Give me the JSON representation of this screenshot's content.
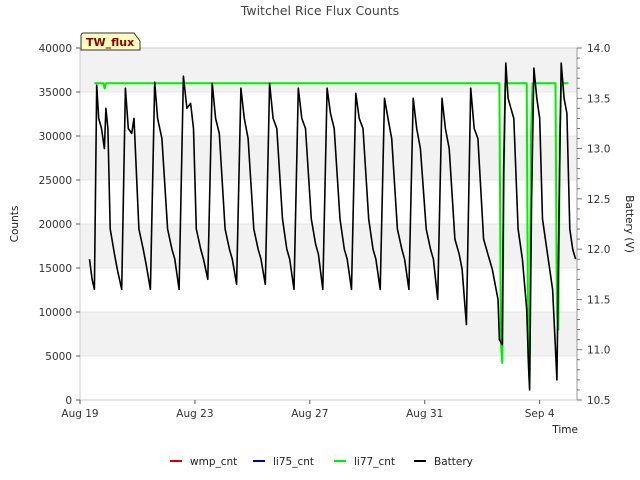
{
  "chart_data": {
    "type": "line",
    "title": "Twitchel Rice Flux Counts",
    "station_label": "TW_flux",
    "xlabel": "Time",
    "ylabel": "Counts",
    "y2label": "Battery (V)",
    "xlim": [
      0,
      17.3
    ],
    "ylim": [
      0,
      40000
    ],
    "y2lim": [
      10.5,
      14.0
    ],
    "x_ticks": [
      {
        "x": 0,
        "label": "Aug 19"
      },
      {
        "x": 4,
        "label": "Aug 23"
      },
      {
        "x": 8,
        "label": "Aug 27"
      },
      {
        "x": 12,
        "label": "Aug 31"
      },
      {
        "x": 16,
        "label": "Sep 4"
      }
    ],
    "y_ticks": [
      0,
      5000,
      10000,
      15000,
      20000,
      25000,
      30000,
      35000,
      40000
    ],
    "y2_ticks": [
      10.5,
      11.0,
      11.5,
      12.0,
      12.5,
      13.0,
      13.5,
      14.0
    ],
    "grid_bands": true,
    "legend_position": "bottom-center",
    "series": [
      {
        "name": "wmp_cnt",
        "color": "#cc0000",
        "points": []
      },
      {
        "name": "li75_cnt",
        "color": "#0000aa",
        "points": []
      },
      {
        "name": "li77_cnt",
        "color": "#00ee00",
        "axis": "left",
        "points": [
          [
            0.5,
            36000
          ],
          [
            0.82,
            36000
          ],
          [
            0.86,
            35400
          ],
          [
            0.9,
            36000
          ],
          [
            14.6,
            36000
          ],
          [
            14.65,
            6500
          ],
          [
            14.7,
            4200
          ],
          [
            14.75,
            25000
          ],
          [
            14.8,
            36000
          ],
          [
            15.55,
            36000
          ],
          [
            15.6,
            5000
          ],
          [
            15.65,
            2000
          ],
          [
            15.7,
            30000
          ],
          [
            15.75,
            36000
          ],
          [
            16.55,
            36000
          ],
          [
            16.6,
            10000
          ],
          [
            16.65,
            8000
          ],
          [
            16.7,
            30000
          ],
          [
            16.75,
            36000
          ],
          [
            17.0,
            36000
          ]
        ]
      },
      {
        "name": "Battery",
        "color": "#000000",
        "axis": "right",
        "points": [
          [
            0.33,
            11.9
          ],
          [
            0.42,
            11.7
          ],
          [
            0.5,
            11.6
          ],
          [
            0.58,
            13.63
          ],
          [
            0.65,
            13.3
          ],
          [
            0.75,
            13.2
          ],
          [
            0.85,
            13.0
          ],
          [
            0.9,
            13.4
          ],
          [
            0.97,
            13.2
          ],
          [
            1.05,
            12.2
          ],
          [
            1.2,
            11.95
          ],
          [
            1.3,
            11.8
          ],
          [
            1.45,
            11.6
          ],
          [
            1.58,
            13.6
          ],
          [
            1.68,
            13.2
          ],
          [
            1.8,
            13.15
          ],
          [
            1.88,
            13.3
          ],
          [
            2.05,
            12.2
          ],
          [
            2.2,
            12.0
          ],
          [
            2.3,
            11.85
          ],
          [
            2.45,
            11.6
          ],
          [
            2.6,
            13.66
          ],
          [
            2.7,
            13.3
          ],
          [
            2.85,
            13.1
          ],
          [
            3.05,
            12.2
          ],
          [
            3.2,
            12.0
          ],
          [
            3.3,
            11.9
          ],
          [
            3.45,
            11.6
          ],
          [
            3.6,
            13.72
          ],
          [
            3.72,
            13.4
          ],
          [
            3.85,
            13.45
          ],
          [
            3.95,
            13.2
          ],
          [
            4.05,
            12.2
          ],
          [
            4.2,
            12.0
          ],
          [
            4.3,
            11.9
          ],
          [
            4.45,
            11.7
          ],
          [
            4.6,
            13.65
          ],
          [
            4.72,
            13.3
          ],
          [
            4.85,
            13.15
          ],
          [
            5.05,
            12.2
          ],
          [
            5.2,
            12.0
          ],
          [
            5.3,
            11.9
          ],
          [
            5.45,
            11.65
          ],
          [
            5.6,
            13.6
          ],
          [
            5.72,
            13.3
          ],
          [
            5.85,
            13.1
          ],
          [
            6.05,
            12.2
          ],
          [
            6.2,
            12.0
          ],
          [
            6.3,
            11.9
          ],
          [
            6.45,
            11.65
          ],
          [
            6.6,
            13.65
          ],
          [
            6.72,
            13.3
          ],
          [
            6.85,
            13.2
          ],
          [
            7.05,
            12.3
          ],
          [
            7.2,
            12.0
          ],
          [
            7.3,
            11.9
          ],
          [
            7.45,
            11.6
          ],
          [
            7.6,
            13.6
          ],
          [
            7.72,
            13.3
          ],
          [
            7.85,
            13.2
          ],
          [
            8.05,
            12.3
          ],
          [
            8.2,
            12.05
          ],
          [
            8.3,
            11.95
          ],
          [
            8.45,
            11.6
          ],
          [
            8.6,
            13.6
          ],
          [
            8.72,
            13.35
          ],
          [
            8.85,
            13.2
          ],
          [
            9.05,
            12.3
          ],
          [
            9.2,
            12.0
          ],
          [
            9.3,
            11.9
          ],
          [
            9.45,
            11.6
          ],
          [
            9.6,
            13.55
          ],
          [
            9.72,
            13.3
          ],
          [
            9.85,
            13.2
          ],
          [
            10.05,
            12.3
          ],
          [
            10.2,
            12.0
          ],
          [
            10.3,
            11.9
          ],
          [
            10.45,
            11.6
          ],
          [
            10.6,
            13.5
          ],
          [
            10.72,
            13.3
          ],
          [
            10.85,
            13.1
          ],
          [
            11.05,
            12.2
          ],
          [
            11.2,
            12.0
          ],
          [
            11.3,
            11.9
          ],
          [
            11.45,
            11.6
          ],
          [
            11.6,
            13.5
          ],
          [
            11.72,
            13.2
          ],
          [
            11.85,
            13.0
          ],
          [
            12.05,
            12.2
          ],
          [
            12.2,
            12.0
          ],
          [
            12.3,
            11.9
          ],
          [
            12.45,
            11.5
          ],
          [
            12.6,
            13.5
          ],
          [
            12.72,
            13.2
          ],
          [
            12.85,
            13.0
          ],
          [
            13.05,
            12.1
          ],
          [
            13.2,
            11.95
          ],
          [
            13.3,
            11.8
          ],
          [
            13.45,
            11.25
          ],
          [
            13.6,
            13.6
          ],
          [
            13.72,
            13.2
          ],
          [
            13.85,
            13.1
          ],
          [
            14.05,
            12.1
          ],
          [
            14.2,
            11.95
          ],
          [
            14.35,
            11.8
          ],
          [
            14.55,
            11.5
          ],
          [
            14.6,
            11.1
          ],
          [
            14.7,
            11.05
          ],
          [
            14.75,
            12.8
          ],
          [
            14.82,
            13.85
          ],
          [
            14.9,
            13.5
          ],
          [
            15.0,
            13.4
          ],
          [
            15.1,
            13.3
          ],
          [
            15.25,
            12.2
          ],
          [
            15.4,
            11.9
          ],
          [
            15.55,
            11.4
          ],
          [
            15.62,
            10.8
          ],
          [
            15.65,
            10.6
          ],
          [
            15.72,
            12.5
          ],
          [
            15.8,
            13.8
          ],
          [
            15.9,
            13.5
          ],
          [
            16.0,
            13.3
          ],
          [
            16.1,
            12.3
          ],
          [
            16.25,
            12.0
          ],
          [
            16.45,
            11.6
          ],
          [
            16.55,
            11.0
          ],
          [
            16.6,
            10.7
          ],
          [
            16.68,
            12.5
          ],
          [
            16.75,
            13.85
          ],
          [
            16.85,
            13.5
          ],
          [
            16.95,
            13.35
          ],
          [
            17.05,
            12.2
          ],
          [
            17.15,
            12.0
          ],
          [
            17.25,
            11.9
          ]
        ]
      }
    ]
  }
}
